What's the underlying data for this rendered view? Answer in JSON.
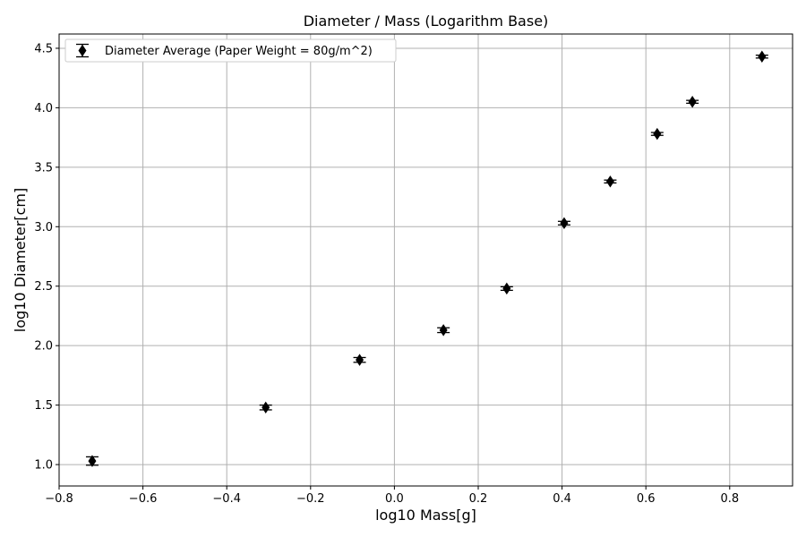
{
  "chart_data": {
    "type": "scatter",
    "title": "Diameter / Mass (Logarithm Base)",
    "xlabel": "log10 Mass[g]",
    "ylabel": "log10 Diameter[cm]",
    "xlim": [
      -0.8,
      0.95
    ],
    "ylim": [
      0.82,
      4.62
    ],
    "xticks": [
      -0.8,
      -0.6,
      -0.4,
      -0.2,
      0.0,
      0.2,
      0.4,
      0.6,
      0.8
    ],
    "xtick_labels": [
      "−0.8",
      "−0.6",
      "−0.4",
      "−0.2",
      "0.0",
      "0.2",
      "0.4",
      "0.6",
      "0.8"
    ],
    "yticks": [
      1.0,
      1.5,
      2.0,
      2.5,
      3.0,
      3.5,
      4.0,
      4.5
    ],
    "ytick_labels": [
      "1.0",
      "1.5",
      "2.0",
      "2.5",
      "3.0",
      "3.5",
      "4.0",
      "4.5"
    ],
    "grid": true,
    "legend_position": "top-left",
    "marker": "thin-diamond",
    "color": "#000000",
    "grid_color": "#b0b0b0",
    "series": [
      {
        "name": "Diameter Average (Paper Weight = 80g/m^2)",
        "x": [
          -0.721,
          -0.307,
          -0.083,
          0.117,
          0.268,
          0.405,
          0.515,
          0.627,
          0.711,
          0.877
        ],
        "y": [
          1.03,
          1.48,
          1.88,
          2.13,
          2.48,
          3.03,
          3.38,
          3.78,
          4.05,
          4.43
        ],
        "yerr": [
          0.035,
          0.02,
          0.02,
          0.02,
          0.015,
          0.015,
          0.012,
          0.012,
          0.012,
          0.012
        ]
      }
    ]
  }
}
